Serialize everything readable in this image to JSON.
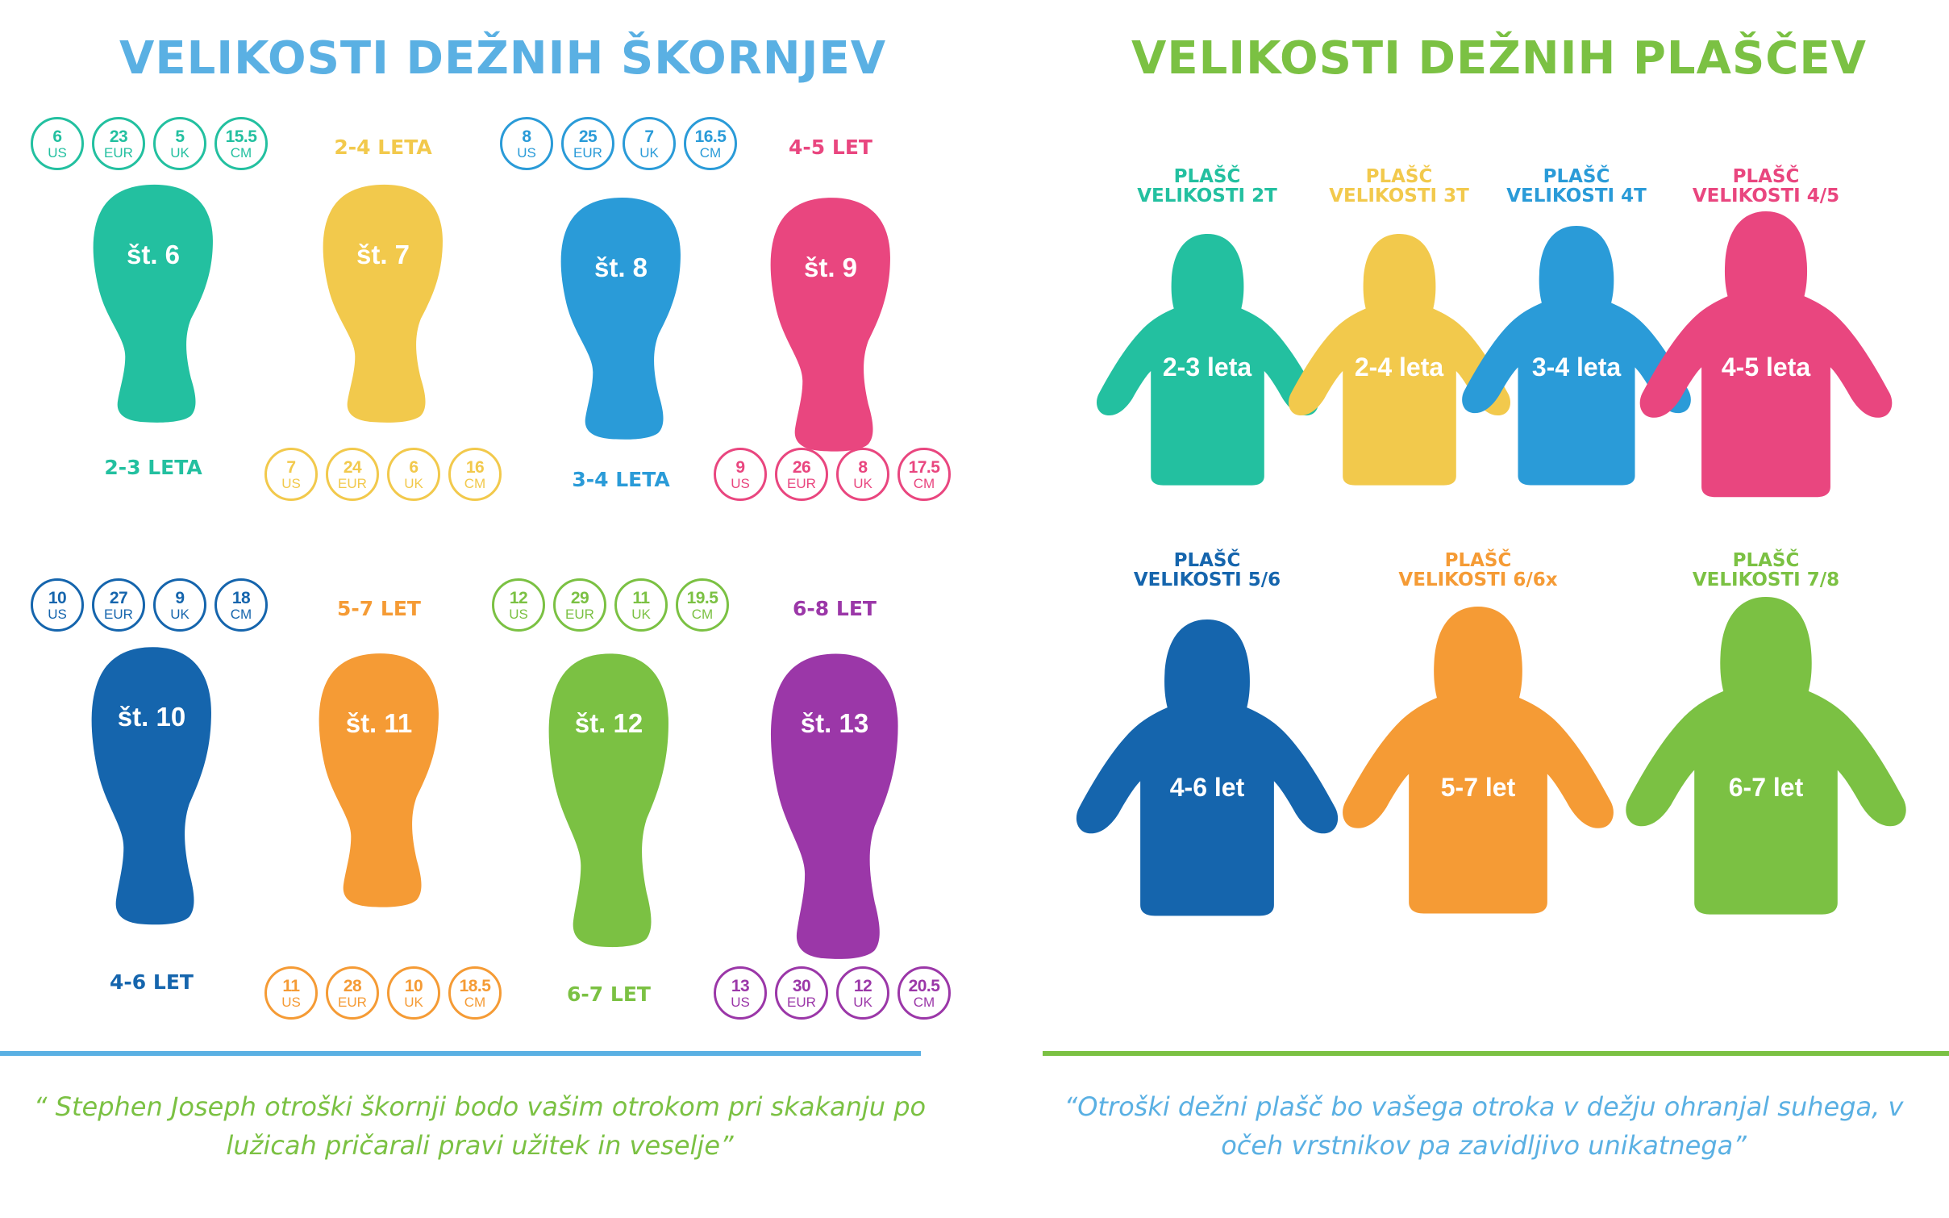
{
  "colors": {
    "teal": "#23c0a0",
    "yellow": "#f2c94c",
    "blue": "#2a9bd8",
    "pink": "#e9467f",
    "navy": "#1565ad",
    "orange": "#f59b35",
    "green": "#7bc143",
    "purple": "#9b37a8",
    "title_left": "#5ab0e3",
    "title_right": "#7bc143"
  },
  "left": {
    "title": "VELIKOSTI DEŽNIH ŠKORNJEV",
    "quote": "“ Stephen Joseph otroški škornji bodo vašim otrokom pri skakanju po lužicah pričarali pravi užitek in veselje”",
    "boots": [
      {
        "label": "št. 6",
        "age": "2-3 LETA",
        "color": "teal",
        "sizes": [
          {
            "n": "6",
            "u": "US"
          },
          {
            "n": "23",
            "u": "EUR"
          },
          {
            "n": "5",
            "u": "UK"
          },
          {
            "n": "15.5",
            "u": "CM"
          }
        ]
      },
      {
        "label": "št. 7",
        "age": "2-4 LETA",
        "color": "yellow",
        "sizes": [
          {
            "n": "7",
            "u": "US"
          },
          {
            "n": "24",
            "u": "EUR"
          },
          {
            "n": "6",
            "u": "UK"
          },
          {
            "n": "16",
            "u": "CM"
          }
        ]
      },
      {
        "label": "št. 8",
        "age": "3-4 LETA",
        "color": "blue",
        "sizes": [
          {
            "n": "8",
            "u": "US"
          },
          {
            "n": "25",
            "u": "EUR"
          },
          {
            "n": "7",
            "u": "UK"
          },
          {
            "n": "16.5",
            "u": "CM"
          }
        ]
      },
      {
        "label": "št. 9",
        "age": "4-5 LET",
        "color": "pink",
        "sizes": [
          {
            "n": "9",
            "u": "US"
          },
          {
            "n": "26",
            "u": "EUR"
          },
          {
            "n": "8",
            "u": "UK"
          },
          {
            "n": "17.5",
            "u": "CM"
          }
        ]
      },
      {
        "label": "št. 10",
        "age": "4-6 LET",
        "color": "navy",
        "sizes": [
          {
            "n": "10",
            "u": "US"
          },
          {
            "n": "27",
            "u": "EUR"
          },
          {
            "n": "9",
            "u": "UK"
          },
          {
            "n": "18",
            "u": "CM"
          }
        ]
      },
      {
        "label": "št. 11",
        "age": "5-7 LET",
        "color": "orange",
        "sizes": [
          {
            "n": "11",
            "u": "US"
          },
          {
            "n": "28",
            "u": "EUR"
          },
          {
            "n": "10",
            "u": "UK"
          },
          {
            "n": "18.5",
            "u": "CM"
          }
        ]
      },
      {
        "label": "št. 12",
        "age": "6-7 LET",
        "color": "green",
        "sizes": [
          {
            "n": "12",
            "u": "US"
          },
          {
            "n": "29",
            "u": "EUR"
          },
          {
            "n": "11",
            "u": "UK"
          },
          {
            "n": "19.5",
            "u": "CM"
          }
        ]
      },
      {
        "label": "št. 13",
        "age": "6-8 LET",
        "color": "purple",
        "sizes": [
          {
            "n": "13",
            "u": "US"
          },
          {
            "n": "30",
            "u": "EUR"
          },
          {
            "n": "12",
            "u": "UK"
          },
          {
            "n": "20.5",
            "u": "CM"
          }
        ]
      }
    ]
  },
  "right": {
    "title": "VELIKOSTI DEŽNIH PLAŠČEV",
    "quote": "“Otroški dežni plašč bo vašega otroka v dežju ohranjal suhega, v očeh vrstnikov pa zavidljivo unikatnega”",
    "coats": [
      {
        "line1": "PLAŠČ",
        "line2": "VELIKOSTI 2T",
        "age": "2-3 leta",
        "color": "teal"
      },
      {
        "line1": "PLAŠČ",
        "line2": "VELIKOSTI 3T",
        "age": "2-4 leta",
        "color": "yellow"
      },
      {
        "line1": "PLAŠČ",
        "line2": "VELIKOSTI 4T",
        "age": "3-4 leta",
        "color": "blue"
      },
      {
        "line1": "PLAŠČ",
        "line2": "VELIKOSTI 4/5",
        "age": "4-5 leta",
        "color": "pink"
      },
      {
        "line1": "PLAŠČ",
        "line2": "VELIKOSTI 5/6",
        "age": "4-6 let",
        "color": "navy"
      },
      {
        "line1": "PLAŠČ",
        "line2": "VELIKOSTI 6/6x",
        "age": "5-7 let",
        "color": "orange"
      },
      {
        "line1": "PLAŠČ",
        "line2": "VELIKOSTI 7/8",
        "age": "6-7 let",
        "color": "green"
      }
    ]
  }
}
